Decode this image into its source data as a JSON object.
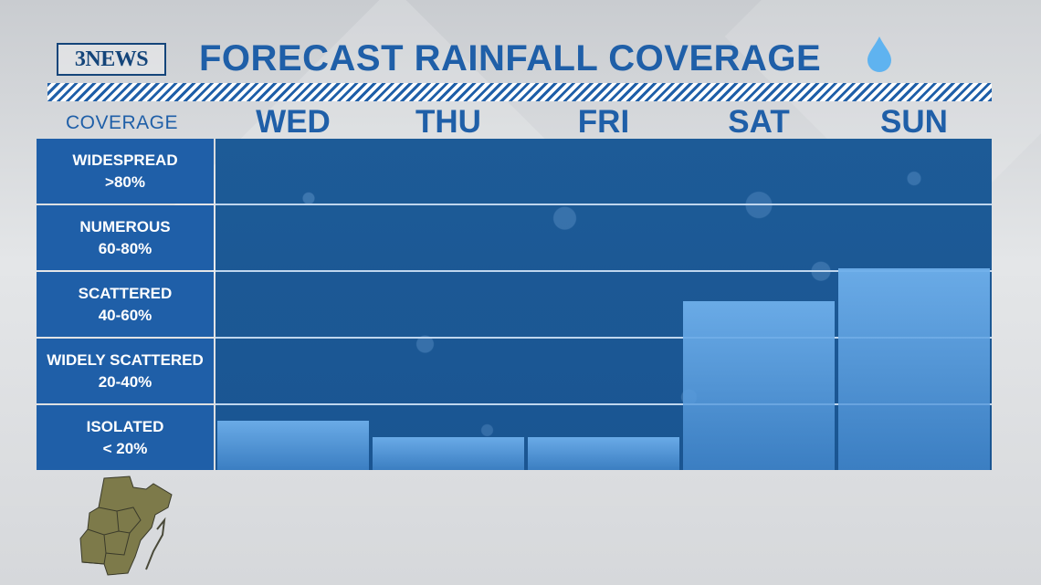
{
  "header": {
    "logo_text": "3NEWS",
    "title": "FORECAST RAINFALL COVERAGE",
    "drop_icon": "raindrop-icon"
  },
  "table": {
    "coverage_header": "COVERAGE",
    "days": [
      "WED",
      "THU",
      "FRI",
      "SAT",
      "SUN"
    ],
    "rows": [
      {
        "name": "WIDESPREAD",
        "range": ">80%"
      },
      {
        "name": "NUMEROUS",
        "range": "60-80%"
      },
      {
        "name": "SCATTERED",
        "range": "40-60%"
      },
      {
        "name": "WIDELY SCATTERED",
        "range": "20-40%"
      },
      {
        "name": "ISOLATED",
        "range": "< 20%"
      }
    ]
  },
  "chart_data": {
    "type": "bar",
    "categories": [
      "WED",
      "THU",
      "FRI",
      "SAT",
      "SUN"
    ],
    "values": [
      15,
      10,
      10,
      51,
      61
    ],
    "ylim": [
      0,
      100
    ],
    "grid": true,
    "colors": {
      "bar": "#5ea3e3",
      "band_label": "#1f5fa8",
      "title": "#1f5fa8"
    }
  },
  "map": {
    "icon": "texas-coastal-bend-map-icon"
  }
}
